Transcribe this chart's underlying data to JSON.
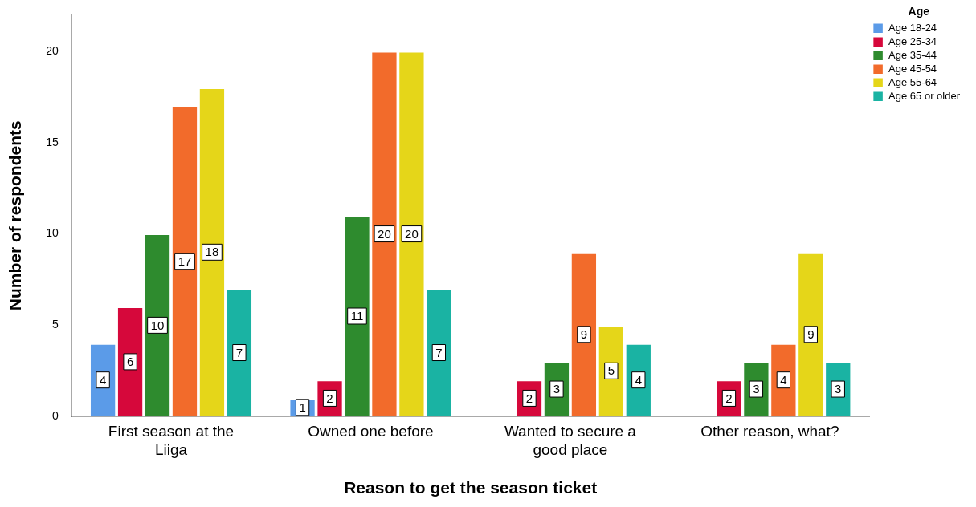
{
  "chart_data": {
    "type": "bar",
    "xlabel": "Reason to get the season ticket",
    "ylabel": "Number of respondents",
    "legend_title": "Age",
    "categories": [
      "First season at the Liiga",
      "Owned one before",
      "Wanted to secure a good place",
      "Other reason, what?"
    ],
    "series": [
      {
        "name": "Age 18-24",
        "color": "#5b9be8",
        "values": [
          4,
          1,
          null,
          null
        ]
      },
      {
        "name": "Age 25-34",
        "color": "#d6083b",
        "values": [
          6,
          2,
          2,
          2
        ]
      },
      {
        "name": "Age 35-44",
        "color": "#2e8b2e",
        "values": [
          10,
          11,
          3,
          3
        ]
      },
      {
        "name": "Age 45-54",
        "color": "#f26b2b",
        "values": [
          17,
          20,
          9,
          4
        ]
      },
      {
        "name": "Age 55-64",
        "color": "#e5d619",
        "values": [
          18,
          20,
          5,
          9
        ]
      },
      {
        "name": "Age 65 or older",
        "color": "#1ab3a3",
        "values": [
          7,
          7,
          4,
          3
        ]
      }
    ],
    "ylim": [
      0,
      22
    ],
    "yticks": [
      0,
      5,
      10,
      15,
      20
    ],
    "grid": false,
    "legend": "top right",
    "data_labels": true
  }
}
